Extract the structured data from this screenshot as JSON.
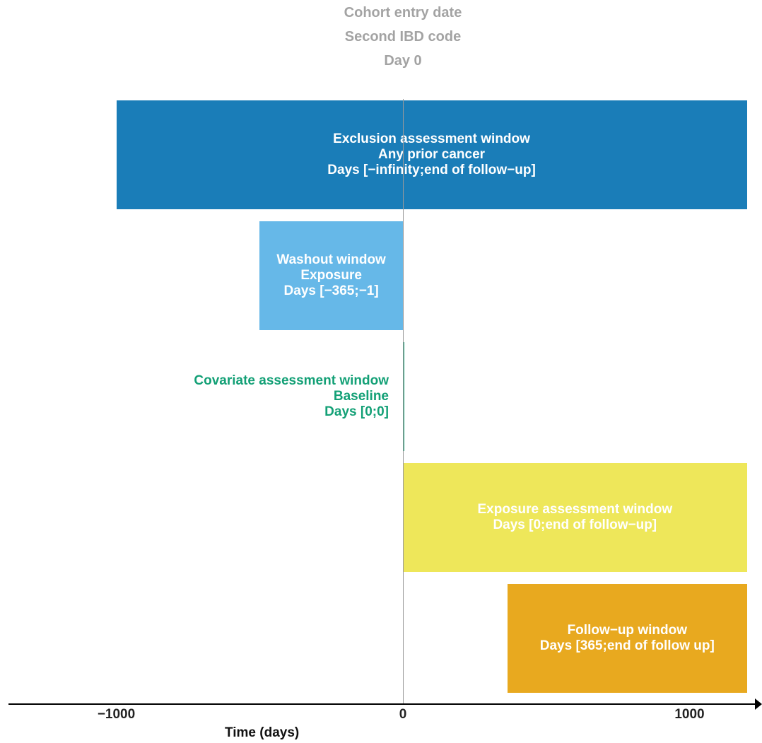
{
  "header": {
    "lines": [
      "Cohort entry date",
      "Second IBD code",
      "Day 0"
    ],
    "color": "#a3a3a3"
  },
  "chart_data": {
    "type": "timeline",
    "xlabel": "Time (days)",
    "xlim": [
      -1400,
      1240
    ],
    "xticks": [
      {
        "value": -1000,
        "label": "−1000"
      },
      {
        "value": 0,
        "label": "0"
      },
      {
        "value": 1000,
        "label": "1000"
      }
    ],
    "windows": [
      {
        "id": "exclusion",
        "start": -1000,
        "end": 1200,
        "lines": [
          "Exclusion assessment window",
          "Any prior cancer",
          "Days [−infinity;end of follow−up]"
        ],
        "fill": "#1a7db8",
        "text_color": "#ffffff"
      },
      {
        "id": "washout",
        "start": -500,
        "end": 0,
        "lines": [
          "Washout window",
          "Exposure",
          "Days [−365;−1]"
        ],
        "fill": "#66b8e8",
        "text_color": "#ffffff"
      },
      {
        "id": "covariate",
        "start": 0,
        "end": 0,
        "lines": [
          "Covariate assessment window",
          "Baseline",
          "Days [0;0]"
        ],
        "fill": "#13a076",
        "text_color": "#13a076"
      },
      {
        "id": "exposure",
        "start": 0,
        "end": 1200,
        "lines": [
          "Exposure assessment window",
          "Days [0;end of follow−up]"
        ],
        "fill": "#eee75a",
        "text_color": "#ffffff"
      },
      {
        "id": "followup",
        "start": 365,
        "end": 1200,
        "lines": [
          "Follow−up window",
          "Days [365;end of follow up]"
        ],
        "fill": "#e8a91f",
        "text_color": "#ffffff"
      }
    ]
  }
}
